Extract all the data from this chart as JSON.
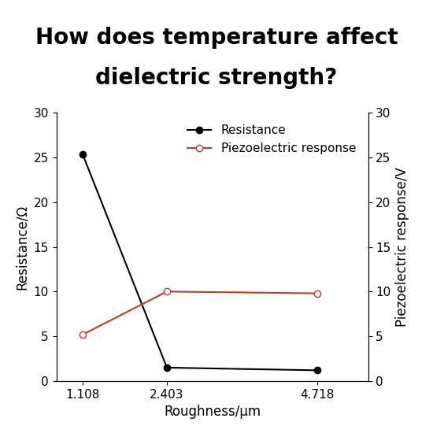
{
  "title_line1": "How does temperature affect",
  "title_line2": "dielectric strength?",
  "title_fontsize": 20,
  "title_fontweight": "bold",
  "xlabel": "Roughness/μm",
  "ylabel_left": "Resistance/Ω",
  "ylabel_right": "Piezoelectric response/V",
  "x": [
    1.108,
    2.403,
    4.718
  ],
  "resistance": [
    25.3,
    1.5,
    1.2
  ],
  "piezo": [
    5.2,
    10.0,
    9.8
  ],
  "ylim_left": [
    0,
    30
  ],
  "ylim_right": [
    0,
    30
  ],
  "yticks_left": [
    0,
    5,
    10,
    15,
    20,
    25,
    30
  ],
  "yticks_right": [
    0,
    5,
    10,
    15,
    20,
    25,
    30
  ],
  "resistance_color": "#000000",
  "piezo_color": "#c0392b",
  "legend_resistance": "Resistance",
  "legend_piezo": "Piezoelectric response",
  "bg_color": "#ffffff",
  "axis_label_fontsize": 12,
  "tick_fontsize": 11,
  "legend_fontsize": 11,
  "xlim": [
    0.7,
    5.5
  ]
}
